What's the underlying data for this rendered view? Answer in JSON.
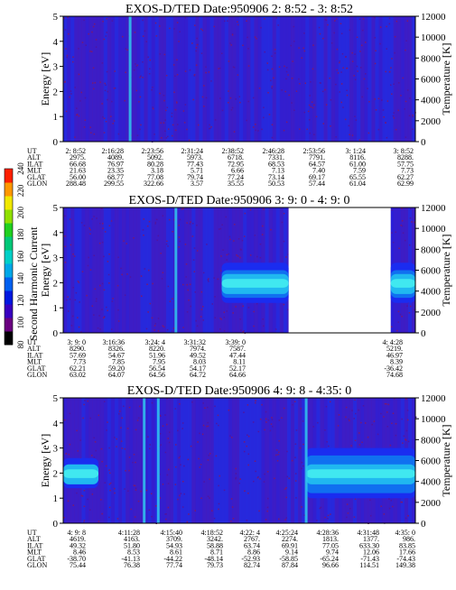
{
  "colorbar": {
    "label": "Second Harmonic Current",
    "ticks": [
      "80",
      "100",
      "120",
      "140",
      "160",
      "180",
      "200",
      "220",
      "240"
    ],
    "colors": [
      "#000000",
      "#6a0080",
      "#3800c0",
      "#0018e0",
      "#0060f0",
      "#00a8e8",
      "#00d0c8",
      "#00c878",
      "#20d020",
      "#90e000",
      "#f0e800",
      "#ff9800",
      "#ff2000"
    ]
  },
  "panels": [
    {
      "title": "EXOS-D/TED   Date:950906  2: 8:52 - 3: 8:52",
      "ylabel": "Energy [eV]",
      "y2label": "Temperature [K]",
      "yticks": [
        "0",
        "1",
        "2",
        "3",
        "4",
        "5"
      ],
      "y2ticks": [
        "0",
        "2000",
        "4000",
        "6000",
        "8000",
        "10000",
        "12000"
      ],
      "orbit": {
        "labels": [
          "UT",
          "ALT",
          "ILAT",
          "MLT",
          "GLAT",
          "GLON"
        ],
        "rows": [
          [
            "2: 8:52",
            "2:16:28",
            "2:23:56",
            "2:31:24",
            "2:38:52",
            "2:46:28",
            "2:53:56",
            "3: 1:24",
            "3: 8:52"
          ],
          [
            "2975.",
            "4089.",
            "5092.",
            "5973.",
            "6718.",
            "7331.",
            "7791.",
            "8116.",
            "8288."
          ],
          [
            "66.68",
            "76.97",
            "80.28",
            "77.43",
            "72.95",
            "68.53",
            "64.57",
            "61.00",
            "57.75"
          ],
          [
            "21.63",
            "23.35",
            "3.18",
            "5.71",
            "6.66",
            "7.13",
            "7.40",
            "7.59",
            "7.73"
          ],
          [
            "56.00",
            "68.77",
            "77.08",
            "79.74",
            "77.24",
            "73.14",
            "69.17",
            "65.55",
            "62.27"
          ],
          [
            "288.48",
            "299.55",
            "322.66",
            "3.57",
            "35.55",
            "50.53",
            "57.44",
            "61.04",
            "62.99"
          ]
        ]
      }
    },
    {
      "title": "EXOS-D/TED   Date:950906  3: 9: 0 - 4: 9: 0",
      "ylabel": "Energy [eV]",
      "y2label": "Temperature [K]",
      "yticks": [
        "0",
        "1",
        "2",
        "3",
        "4",
        "5"
      ],
      "y2ticks": [
        "0",
        "2000",
        "4000",
        "6000",
        "8000",
        "10000",
        "12000"
      ],
      "orbit": {
        "labels": [
          "UT",
          "ALT",
          "ILAT",
          "MLT",
          "GLAT",
          "GLON"
        ],
        "rows": [
          [
            "3: 9: 0",
            "3:16:36",
            "3:24: 4",
            "3:31:32",
            "3:39: 0",
            "4: 4:28"
          ],
          [
            "8290.",
            "8326.",
            "8220.",
            "7974.",
            "7587.",
            "5219."
          ],
          [
            "57.69",
            "54.67",
            "51.96",
            "49.52",
            "47.44",
            "46.97"
          ],
          [
            "7.73",
            "7.85",
            "7.95",
            "8.03",
            "8.11",
            "8.39"
          ],
          [
            "62.21",
            "59.20",
            "56.54",
            "54.17",
            "52.17",
            "-36.42"
          ],
          [
            "63.02",
            "64.07",
            "64.56",
            "64.72",
            "64.66",
            "74.68"
          ]
        ]
      }
    },
    {
      "title": "EXOS-D/TED   Date:950906  4: 9: 8 - 4:35: 0",
      "ylabel": "Energy [eV]",
      "y2label": "Temperature [K]",
      "yticks": [
        "0",
        "1",
        "2",
        "3",
        "4",
        "5"
      ],
      "y2ticks": [
        "0",
        "2000",
        "4000",
        "6000",
        "8000",
        "10000",
        "12000"
      ],
      "orbit": {
        "labels": [
          "UT",
          "ALT",
          "ILAT",
          "MLT",
          "GLAT",
          "GLON"
        ],
        "rows": [
          [
            "4: 9: 8",
            "4:11:28",
            "4:15:40",
            "4:18:52",
            "4:22: 4",
            "4:25:24",
            "4:28:36",
            "4:31:48",
            "4:35: 0"
          ],
          [
            "4619.",
            "4163.",
            "3709.",
            "3242.",
            "2767.",
            "2274.",
            "1813.",
            "1377.",
            "986."
          ],
          [
            "49.32",
            "51.80",
            "54.93",
            "58.88",
            "63.74",
            "69.91",
            "77.05",
            "633.30",
            "83.85"
          ],
          [
            "8.46",
            "8.53",
            "8.61",
            "8.71",
            "8.86",
            "9.14",
            "9.74",
            "12.06",
            "17.66"
          ],
          [
            "-38.70",
            "-41.13",
            "-44.22",
            "-48.14",
            "-52.93",
            "-58.85",
            "-65.24",
            "-71.43",
            "-74.43"
          ],
          [
            "75.44",
            "76.38",
            "77.74",
            "79.73",
            "82.74",
            "87.84",
            "96.66",
            "114.51",
            "149.38"
          ]
        ]
      }
    }
  ],
  "chart_data": [
    {
      "type": "heatmap",
      "title": "EXOS-D/TED   Date:950906  2: 8:52 - 3: 8:52",
      "xlabel": "UT",
      "ylabel": "Energy [eV]",
      "y2label": "Temperature [K]",
      "ylim": [
        0,
        5
      ],
      "y2lim": [
        0,
        12000
      ],
      "x_ticks": [
        "2: 8:52",
        "2:16:28",
        "2:23:56",
        "2:31:24",
        "2:38:52",
        "2:46:28",
        "2:53:56",
        "3: 1:24",
        "3: 8:52"
      ],
      "colorbar_range": [
        80,
        240
      ],
      "features": [
        {
          "kind": "background",
          "level": 120
        },
        {
          "kind": "vertical-stripe",
          "x": 0.19,
          "level": 170
        }
      ]
    },
    {
      "type": "heatmap",
      "title": "EXOS-D/TED   Date:950906  3: 9: 0 - 4: 9: 0",
      "xlabel": "UT",
      "ylabel": "Energy [eV]",
      "y2label": "Temperature [K]",
      "ylim": [
        0,
        5
      ],
      "y2lim": [
        0,
        12000
      ],
      "x_ticks": [
        "3: 9: 0",
        "3:16:36",
        "3:24: 4",
        "3:31:32",
        "3:39: 0",
        "4: 4:28"
      ],
      "colorbar_range": [
        80,
        240
      ],
      "data_gap": [
        0.64,
        0.93
      ],
      "features": [
        {
          "kind": "background",
          "level": 120
        },
        {
          "kind": "vertical-stripe",
          "x": 0.32,
          "level": 170
        },
        {
          "kind": "band",
          "x": [
            0.45,
            0.64
          ],
          "energy_eV": [
            1.2,
            2.8
          ],
          "peak_eV": 2.0,
          "level": 160
        },
        {
          "kind": "band",
          "x": [
            0.93,
            1.0
          ],
          "energy_eV": [
            1.2,
            2.8
          ],
          "peak_eV": 2.0,
          "level": 160
        }
      ]
    },
    {
      "type": "heatmap",
      "title": "EXOS-D/TED   Date:950906  4: 9: 8 - 4:35: 0",
      "xlabel": "UT",
      "ylabel": "Energy [eV]",
      "y2label": "Temperature [K]",
      "ylim": [
        0,
        5
      ],
      "y2lim": [
        0,
        12000
      ],
      "x_ticks": [
        "4: 9: 8",
        "4:11:28",
        "4:15:40",
        "4:18:52",
        "4:22: 4",
        "4:25:24",
        "4:28:36",
        "4:31:48",
        "4:35: 0"
      ],
      "colorbar_range": [
        80,
        240
      ],
      "features": [
        {
          "kind": "background",
          "level": 120
        },
        {
          "kind": "vertical-stripe",
          "x": 0.23,
          "level": 175
        },
        {
          "kind": "vertical-stripe",
          "x": 0.27,
          "level": 175
        },
        {
          "kind": "band",
          "x": [
            0.0,
            0.1
          ],
          "energy_eV": [
            1.4,
            2.6
          ],
          "peak_eV": 2.0,
          "level": 150
        },
        {
          "kind": "band",
          "x": [
            0.69,
            1.0
          ],
          "energy_eV": [
            1.0,
            3.0
          ],
          "peak_eV": 2.0,
          "level": 165
        },
        {
          "kind": "vertical-stripe",
          "x": 0.69,
          "level": 175
        }
      ]
    }
  ]
}
